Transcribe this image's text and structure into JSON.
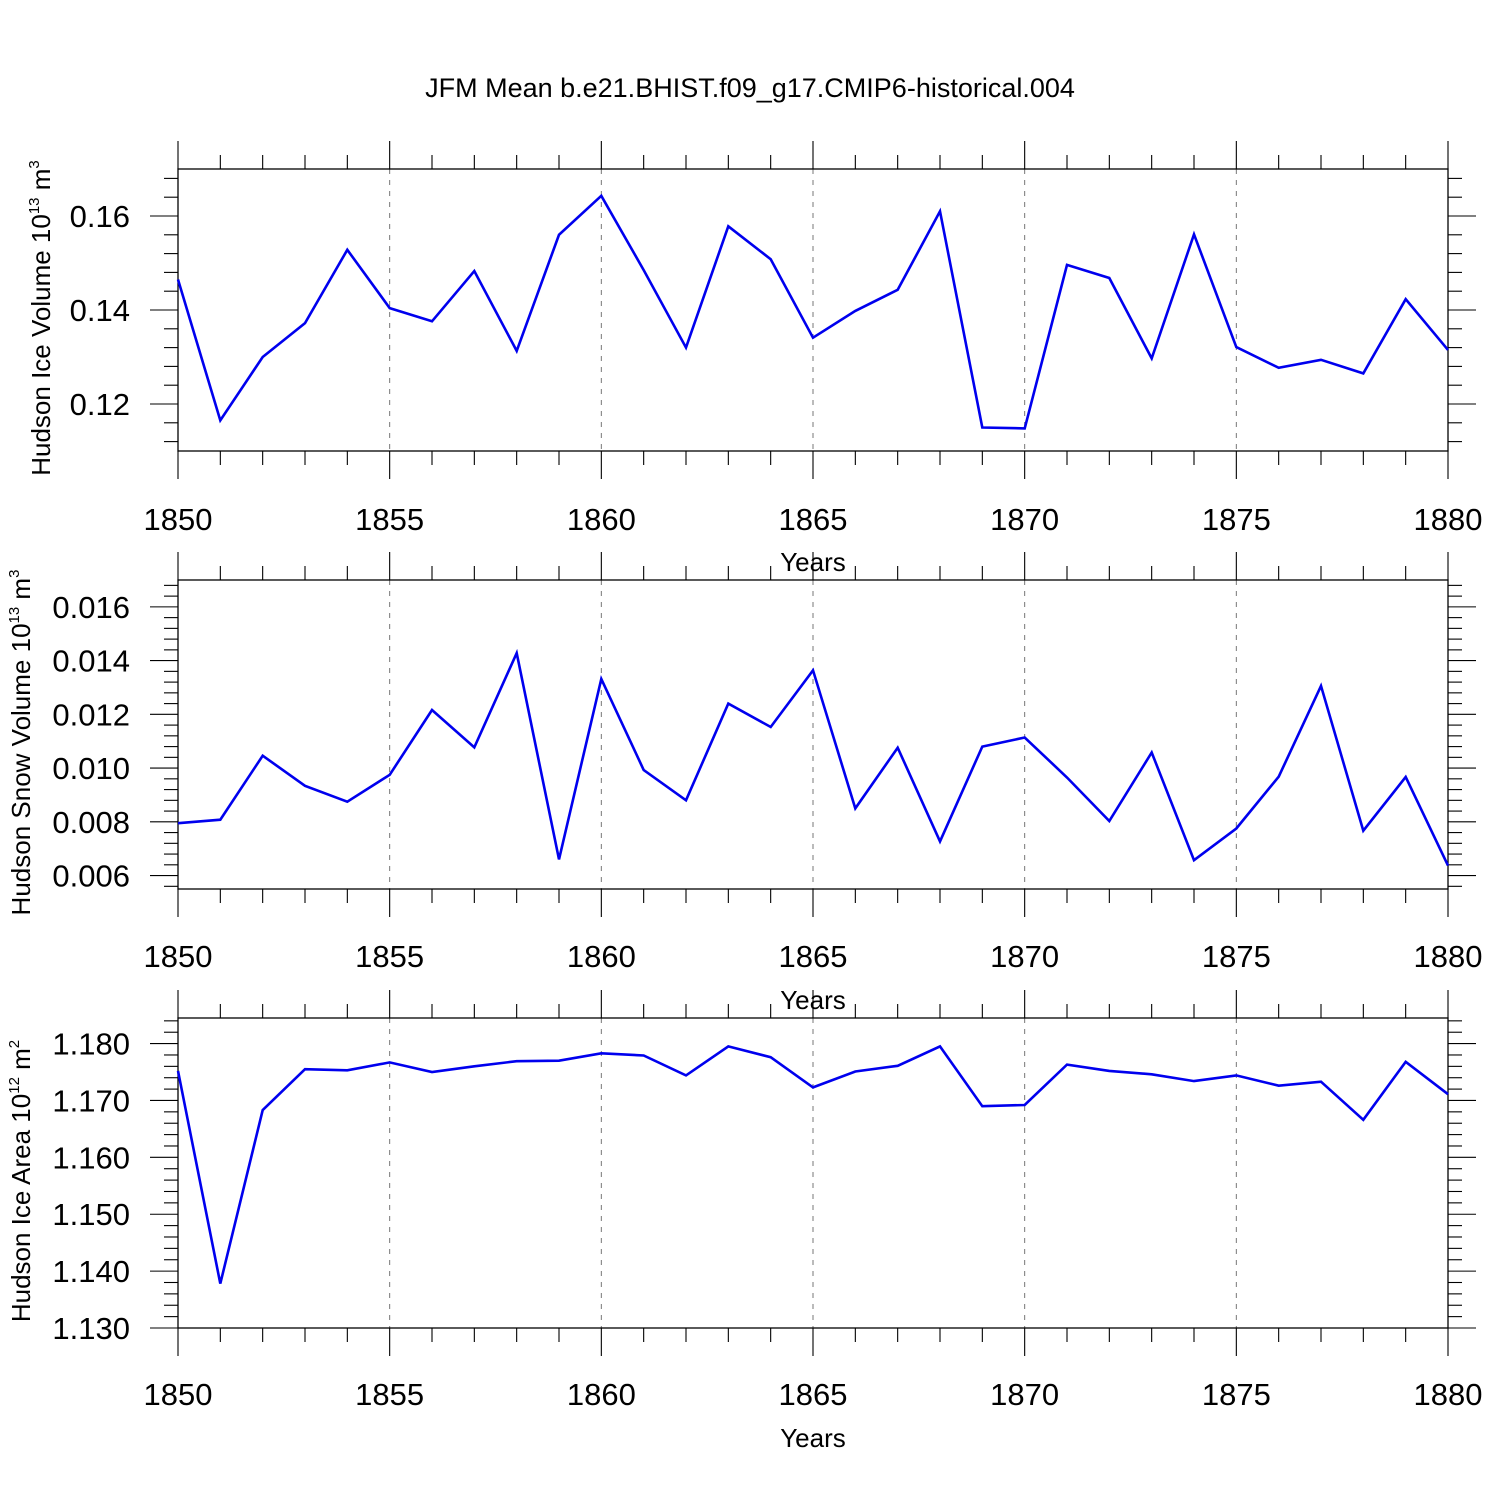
{
  "title": "JFM Mean b.e21.BHIST.f09_g17.CMIP6-historical.004",
  "chart_data": [
    {
      "type": "line",
      "title": "JFM Mean b.e21.BHIST.f09_g17.CMIP6-historical.004",
      "xlabel": "Years",
      "ylabel": {
        "text": "Hudson Ice Volume 10",
        "sup": "13",
        "unit": "m",
        "unit_sup": "3"
      },
      "xlim": [
        1850,
        1880
      ],
      "ylim": [
        0.11,
        0.17
      ],
      "x_ticks": [
        1850,
        1855,
        1860,
        1865,
        1870,
        1875,
        1880
      ],
      "x_tick_labels": [
        "1850",
        "1855",
        "1860",
        "1865",
        "1870",
        "1875",
        "1880"
      ],
      "y_ticks": [
        0.12,
        0.14,
        0.16
      ],
      "y_tick_labels": [
        "0.12",
        "0.14",
        "0.16"
      ],
      "grid": "vertical dashed at major x ticks",
      "series": [
        {
          "name": "Hudson Ice Volume",
          "color": "#0000ee",
          "x": [
            1850,
            1851,
            1852,
            1853,
            1854,
            1855,
            1856,
            1857,
            1858,
            1859,
            1860,
            1861,
            1862,
            1863,
            1864,
            1865,
            1866,
            1867,
            1868,
            1869,
            1870,
            1871,
            1872,
            1873,
            1874,
            1875,
            1876,
            1877,
            1878,
            1879,
            1880
          ],
          "values": [
            0.1465,
            0.1165,
            0.13,
            0.1372,
            0.1528,
            0.1404,
            0.1376,
            0.1483,
            0.1313,
            0.156,
            0.1643,
            0.1485,
            0.132,
            0.1578,
            0.1508,
            0.1341,
            0.1398,
            0.1443,
            0.161,
            0.115,
            0.1148,
            0.1496,
            0.1468,
            0.1297,
            0.1561,
            0.1321,
            0.1277,
            0.1294,
            0.1265,
            0.1423,
            0.1315
          ]
        }
      ]
    },
    {
      "type": "line",
      "xlabel": "Years",
      "ylabel": {
        "text": "Hudson Snow Volume 10",
        "sup": "13",
        "unit": "m",
        "unit_sup": "3"
      },
      "xlim": [
        1850,
        1880
      ],
      "ylim": [
        0.0055,
        0.017
      ],
      "x_ticks": [
        1850,
        1855,
        1860,
        1865,
        1870,
        1875,
        1880
      ],
      "x_tick_labels": [
        "1850",
        "1855",
        "1860",
        "1865",
        "1870",
        "1875",
        "1880"
      ],
      "y_ticks": [
        0.006,
        0.008,
        0.01,
        0.012,
        0.014,
        0.016
      ],
      "y_tick_labels": [
        "0.006",
        "0.008",
        "0.010",
        "0.012",
        "0.014",
        "0.016"
      ],
      "grid": "vertical dashed at major x ticks",
      "series": [
        {
          "name": "Hudson Snow Volume",
          "color": "#0000ee",
          "x": [
            1850,
            1851,
            1852,
            1853,
            1854,
            1855,
            1856,
            1857,
            1858,
            1859,
            1860,
            1861,
            1862,
            1863,
            1864,
            1865,
            1866,
            1867,
            1868,
            1869,
            1870,
            1871,
            1872,
            1873,
            1874,
            1875,
            1876,
            1877,
            1878,
            1879,
            1880
          ],
          "values": [
            0.00795,
            0.00808,
            0.01046,
            0.00934,
            0.00875,
            0.00975,
            0.01216,
            0.01077,
            0.01428,
            0.0066,
            0.01332,
            0.00993,
            0.0088,
            0.0124,
            0.01153,
            0.01364,
            0.0085,
            0.01076,
            0.00727,
            0.0108,
            0.01114,
            0.00965,
            0.00803,
            0.01058,
            0.00657,
            0.00775,
            0.00968,
            0.01306,
            0.00767,
            0.00967,
            0.00637
          ]
        }
      ]
    },
    {
      "type": "line",
      "xlabel": "Years",
      "ylabel": {
        "text": "Hudson Ice Area 10",
        "sup": "12",
        "unit": "m",
        "unit_sup": "2"
      },
      "xlim": [
        1850,
        1880
      ],
      "ylim": [
        1.13,
        1.1845
      ],
      "x_ticks": [
        1850,
        1855,
        1860,
        1865,
        1870,
        1875,
        1880
      ],
      "x_tick_labels": [
        "1850",
        "1855",
        "1860",
        "1865",
        "1870",
        "1875",
        "1880"
      ],
      "y_ticks": [
        1.13,
        1.14,
        1.15,
        1.16,
        1.17,
        1.18
      ],
      "y_tick_labels": [
        "1.130",
        "1.140",
        "1.150",
        "1.160",
        "1.170",
        "1.180"
      ],
      "grid": "vertical dashed at major x ticks",
      "series": [
        {
          "name": "Hudson Ice Area",
          "color": "#0000ee",
          "x": [
            1850,
            1851,
            1852,
            1853,
            1854,
            1855,
            1856,
            1857,
            1858,
            1859,
            1860,
            1861,
            1862,
            1863,
            1864,
            1865,
            1866,
            1867,
            1868,
            1869,
            1870,
            1871,
            1872,
            1873,
            1874,
            1875,
            1876,
            1877,
            1878,
            1879,
            1880
          ],
          "values": [
            1.1752,
            1.1378,
            1.1683,
            1.1755,
            1.1753,
            1.1767,
            1.175,
            1.176,
            1.1769,
            1.177,
            1.1783,
            1.1779,
            1.1744,
            1.1795,
            1.1776,
            1.1723,
            1.1751,
            1.1761,
            1.1795,
            1.169,
            1.1692,
            1.1763,
            1.1752,
            1.1746,
            1.1734,
            1.1744,
            1.1726,
            1.1733,
            1.1666,
            1.1768,
            1.1711
          ]
        }
      ]
    }
  ]
}
